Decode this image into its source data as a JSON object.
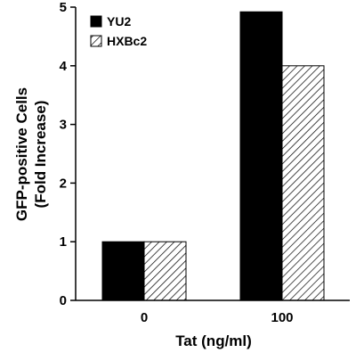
{
  "chart_data": {
    "type": "bar",
    "categories": [
      "0",
      "100"
    ],
    "series": [
      {
        "name": "YU2",
        "values": [
          1.0,
          4.92
        ],
        "fill": "#000000",
        "pattern": "solid"
      },
      {
        "name": "HXBc2",
        "values": [
          1.0,
          4.0
        ],
        "fill": "#ffffff",
        "pattern": "diagonal-hatch"
      }
    ],
    "xlabel": "Tat (ng/ml)",
    "ylabel_lines": [
      "GFP-positive Cells",
      "(Fold Increase)"
    ],
    "ylim": [
      0,
      5
    ],
    "yticks": [
      "0",
      "1",
      "2",
      "3",
      "4",
      "5"
    ],
    "grid": false,
    "legend_position": "top-left"
  }
}
